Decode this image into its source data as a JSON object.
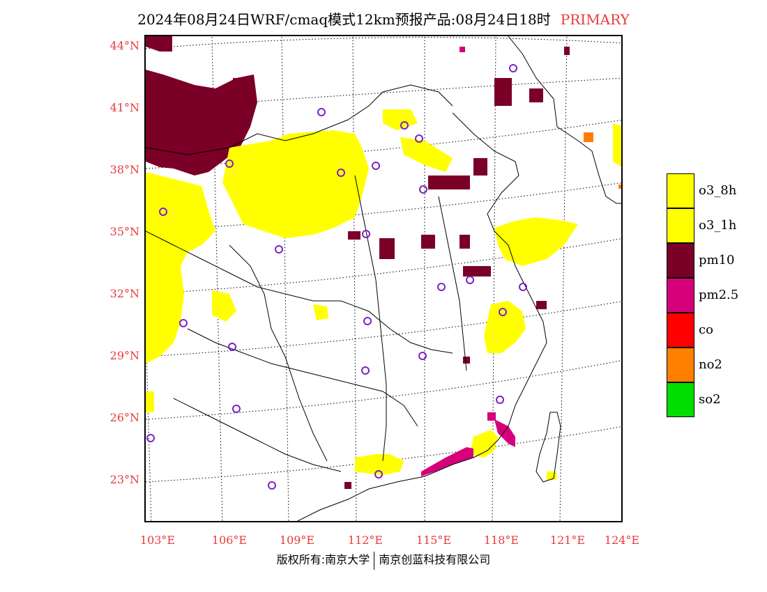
{
  "title": {
    "main": "2024年08月24日WRF/cmaq模式12km预报产品:08月24日18时",
    "tag": "PRIMARY"
  },
  "axes": {
    "lat_labels": [
      "44°N",
      "41°N",
      "38°N",
      "35°N",
      "32°N",
      "29°N",
      "26°N",
      "23°N"
    ],
    "lon_labels": [
      "103°E",
      "106°E",
      "109°E",
      "112°E",
      "115°E",
      "118°E",
      "121°E",
      "124°E"
    ]
  },
  "legend": [
    {
      "label": "o3_8h",
      "color": "#ffff00"
    },
    {
      "label": "o3_1h",
      "color": "#ffff00"
    },
    {
      "label": "pm10",
      "color": "#7a0028"
    },
    {
      "label": "pm2.5",
      "color": "#d5007a"
    },
    {
      "label": "co",
      "color": "#ff0000"
    },
    {
      "label": "no2",
      "color": "#ff7f00"
    },
    {
      "label": "so2",
      "color": "#00dd00"
    }
  ],
  "footer": {
    "left": "版权所有:南京大学",
    "right": "南京创蓝科技有限公司"
  }
}
